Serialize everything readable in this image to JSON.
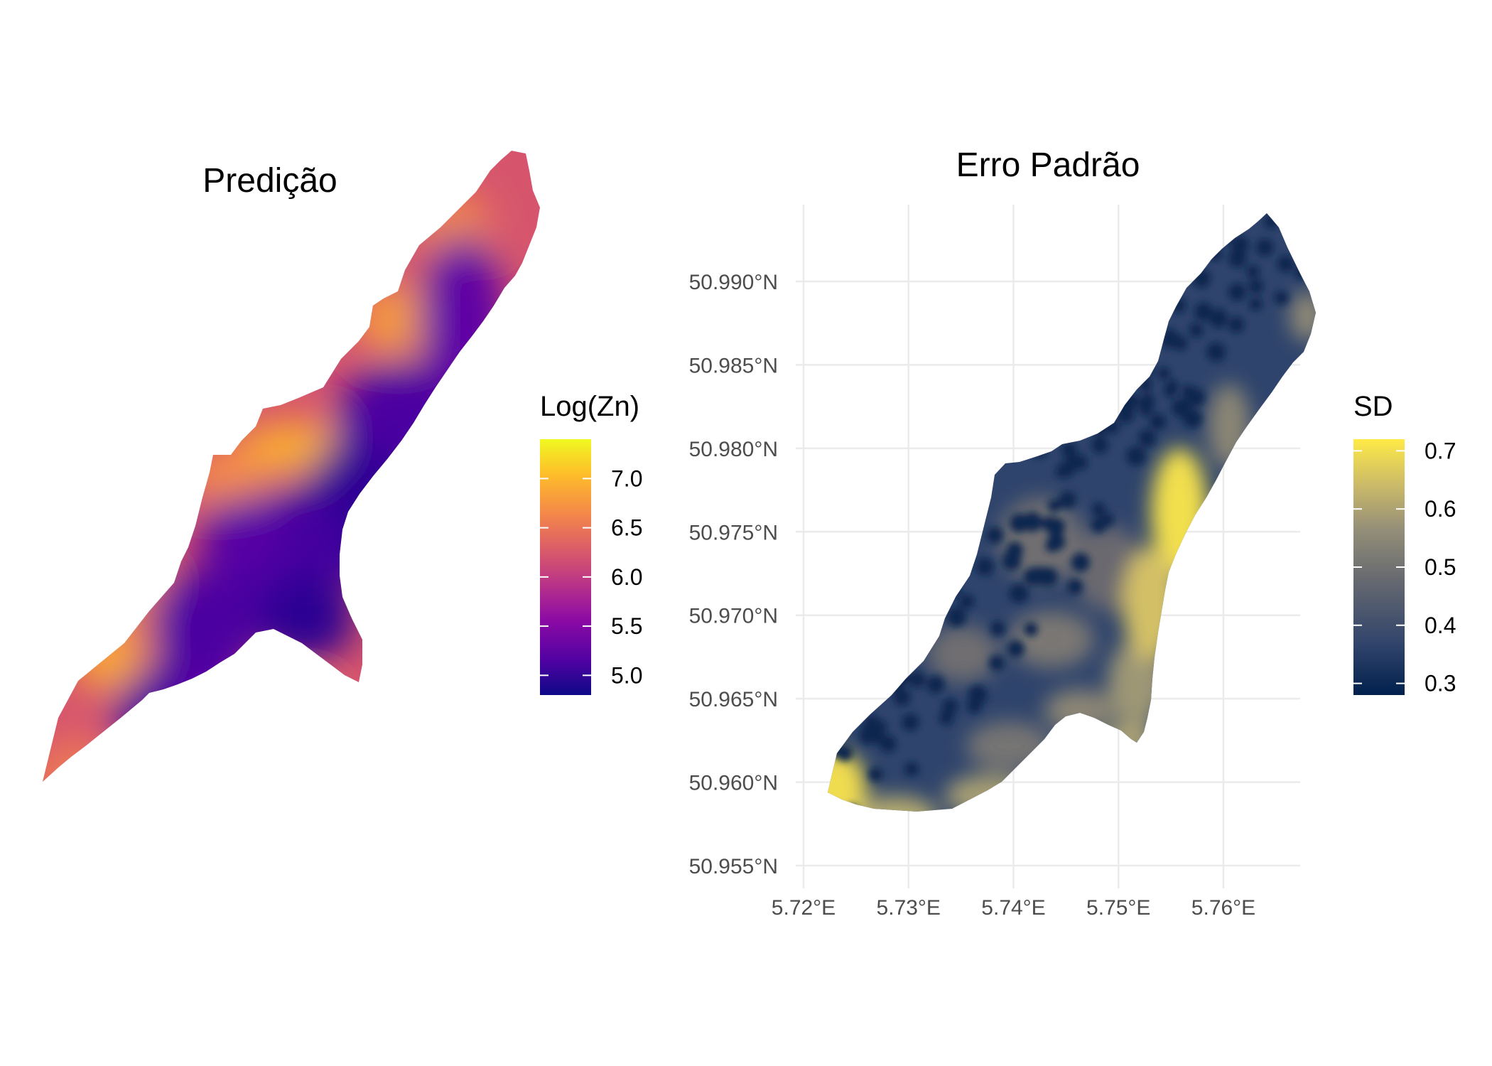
{
  "panels": {
    "left": {
      "title": "Predição",
      "legend": {
        "title": "Log(Zn)",
        "labels": [
          "7.0",
          "6.5",
          "6.0",
          "5.5",
          "5.0"
        ],
        "values": [
          7.0,
          6.5,
          6.0,
          5.5,
          5.0
        ],
        "range": [
          4.8,
          7.4
        ],
        "colors": [
          "#0d0887",
          "#5302a3",
          "#8b0aa5",
          "#b83289",
          "#db5c68",
          "#f48849",
          "#febc2a",
          "#f0f921"
        ]
      }
    },
    "right": {
      "title": "Erro Padrão",
      "legend": {
        "title": "SD",
        "labels": [
          "0.7",
          "0.6",
          "0.5",
          "0.4",
          "0.3"
        ],
        "values": [
          0.7,
          0.6,
          0.5,
          0.4,
          0.3
        ],
        "range": [
          0.28,
          0.72
        ],
        "colors": [
          "#00204d",
          "#31446b",
          "#666970",
          "#958f78",
          "#cbba69",
          "#ffea46"
        ]
      },
      "x_ticks": [
        "5.72°E",
        "5.73°E",
        "5.74°E",
        "5.75°E",
        "5.76°E"
      ],
      "x_values": [
        5.72,
        5.73,
        5.74,
        5.75,
        5.76
      ],
      "y_ticks": [
        "50.990°N",
        "50.985°N",
        "50.980°N",
        "50.975°N",
        "50.970°N",
        "50.965°N",
        "50.960°N",
        "50.955°N"
      ],
      "y_values": [
        50.99,
        50.985,
        50.98,
        50.975,
        50.97,
        50.965,
        50.96,
        50.955
      ]
    }
  }
}
